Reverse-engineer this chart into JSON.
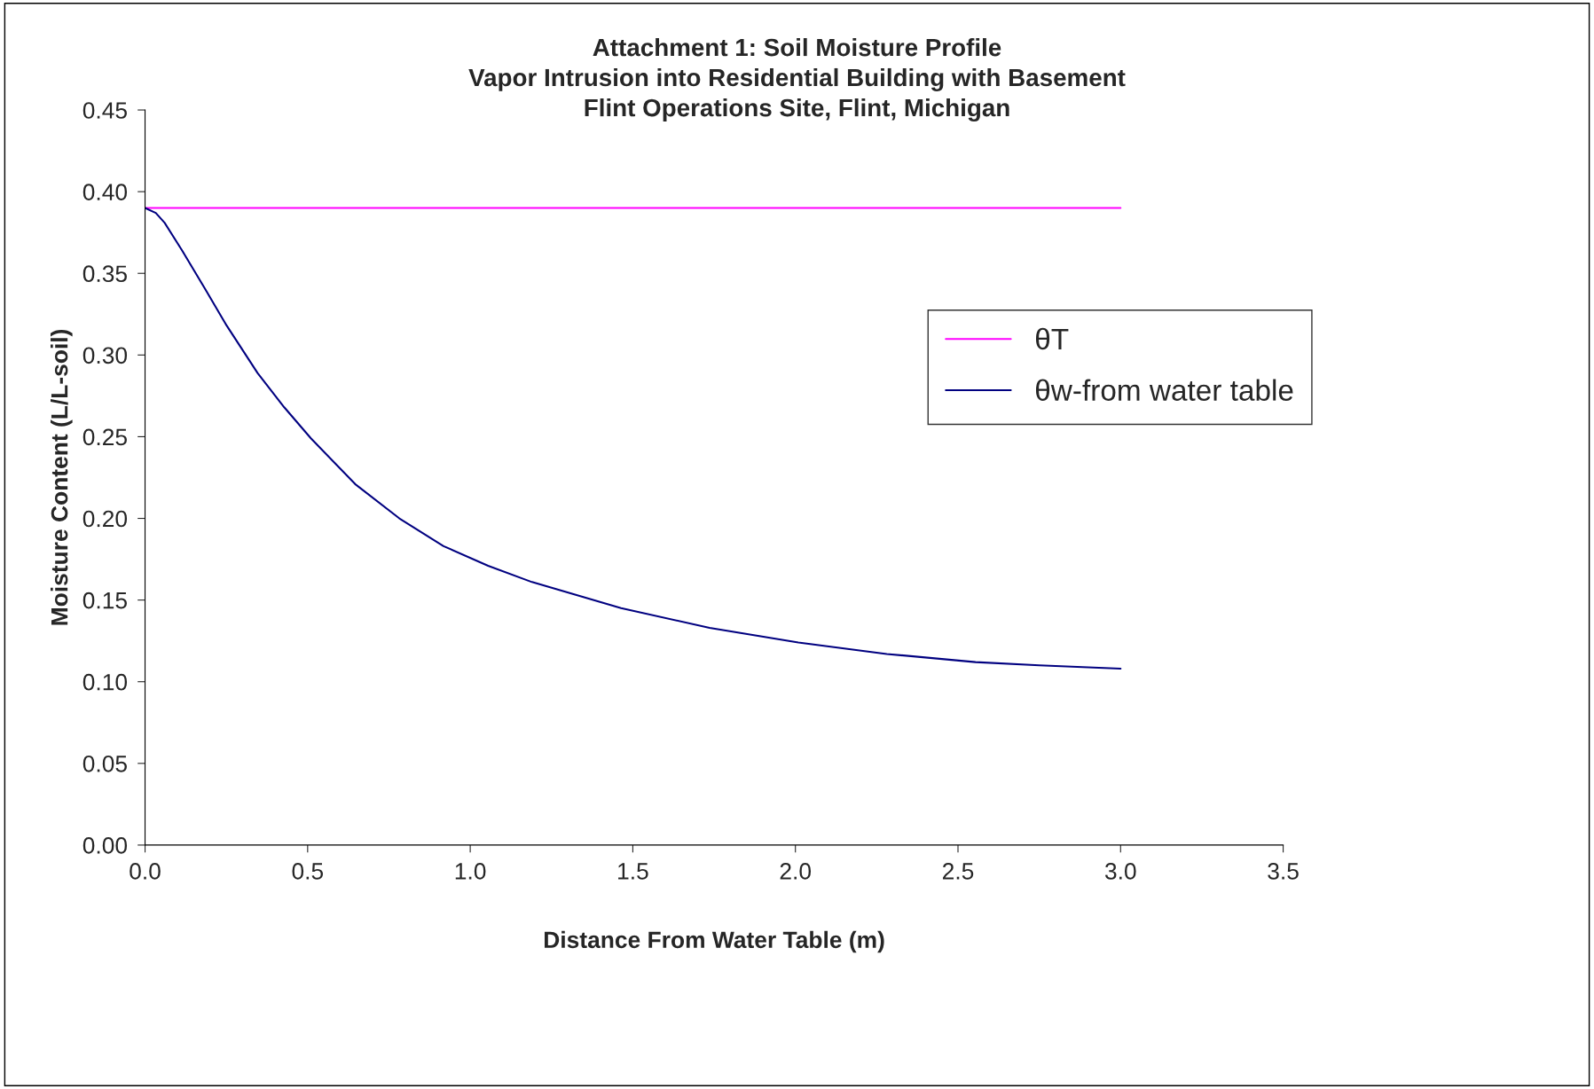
{
  "chart_data": {
    "type": "line",
    "title": "Attachment 1: Soil Moisture Profile\nVapor Intrusion into Residential Building with Basement\nFlint Operations Site, Flint, Michigan",
    "xlabel": "Distance From Water Table (m)",
    "ylabel": "Moisture Content (L/L-soil)",
    "xlim": [
      0,
      3.5
    ],
    "xticks": [
      {
        "value": 0,
        "label": "0.0"
      },
      0.5,
      {
        "value": 1,
        "label": "1.0"
      },
      1.5,
      {
        "value": 2,
        "label": "2.0"
      },
      2.5,
      {
        "value": 3,
        "label": "3.0"
      },
      3.5
    ],
    "ylim": [
      0,
      0.45
    ],
    "yticks": [
      {
        "value": 0,
        "label": "0.00"
      },
      0.05,
      {
        "value": 0.1,
        "label": "0.10"
      },
      0.15,
      {
        "value": 0.2,
        "label": "0.20"
      },
      0.25,
      {
        "value": 0.3,
        "label": "0.30"
      },
      0.35,
      {
        "value": 0.4,
        "label": "0.40"
      },
      0.45
    ],
    "grid": false,
    "legend": "right",
    "marker": "none",
    "line_style": "solid",
    "series": [
      {
        "name": "θT",
        "color": "#ff00ff",
        "x": [
          0,
          3.0
        ],
        "values": [
          0.39,
          0.39
        ]
      },
      {
        "name": "θw-from water table",
        "color": "#000080",
        "x": [
          0,
          0.033,
          0.06,
          0.114,
          0.183,
          0.251,
          0.346,
          0.428,
          0.51,
          0.646,
          0.782,
          0.918,
          1.055,
          1.19,
          1.464,
          1.736,
          2.009,
          2.281,
          2.554,
          2.75,
          3.0
        ],
        "values": [
          0.39,
          0.387,
          0.381,
          0.364,
          0.341,
          0.318,
          0.289,
          0.268,
          0.249,
          0.221,
          0.2,
          0.183,
          0.171,
          0.161,
          0.145,
          0.133,
          0.124,
          0.117,
          0.112,
          0.11,
          0.108
        ]
      }
    ]
  }
}
